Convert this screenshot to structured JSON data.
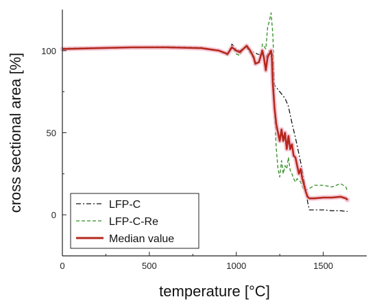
{
  "chart_data": {
    "type": "line",
    "title": "",
    "xlabel": "temperature [°C]",
    "ylabel": "cross sectional area [%]",
    "xlim": [
      0,
      1750
    ],
    "ylim": [
      -25,
      125
    ],
    "xticks": [
      0,
      500,
      1000,
      1500
    ],
    "yticks": [
      0,
      50,
      100
    ],
    "grid": false,
    "legend_position": "bottom-left",
    "series": [
      {
        "name": "LFP-C",
        "color": "#111111",
        "dash": "dashdot",
        "x": [
          0,
          300,
          600,
          800,
          900,
          950,
          975,
          1000,
          1020,
          1050,
          1080,
          1100,
          1120,
          1150,
          1170,
          1190,
          1200,
          1210,
          1220,
          1250,
          1280,
          1300,
          1320,
          1340,
          1360,
          1380,
          1400,
          1410,
          1420,
          1450,
          1500,
          1550,
          1600,
          1640
        ],
        "y": [
          101,
          101.5,
          102,
          101.5,
          100,
          98,
          104,
          101,
          100,
          102,
          100,
          99,
          98,
          97,
          96,
          100,
          99,
          98,
          79,
          75,
          71,
          66,
          56,
          47,
          37,
          27,
          15,
          8,
          3,
          3,
          3,
          2.5,
          2.5,
          2
        ]
      },
      {
        "name": "LFP-C-Re",
        "color": "#2e8b22",
        "dash": "dashed",
        "x": [
          0,
          300,
          600,
          800,
          900,
          950,
          975,
          1000,
          1020,
          1040,
          1050,
          1070,
          1100,
          1120,
          1140,
          1150,
          1170,
          1180,
          1190,
          1200,
          1210,
          1215,
          1220,
          1230,
          1240,
          1250,
          1260,
          1270,
          1280,
          1290,
          1300,
          1310,
          1320,
          1330,
          1340,
          1350,
          1360,
          1370,
          1380,
          1390,
          1400,
          1420,
          1450,
          1500,
          1550,
          1600,
          1630,
          1640
        ],
        "y": [
          101.5,
          102,
          102.5,
          102,
          100,
          97,
          103,
          98,
          97,
          101,
          103,
          100,
          95,
          92,
          96,
          104,
          101,
          114,
          118,
          123,
          110,
          96,
          62,
          40,
          28,
          23,
          33,
          25,
          30,
          28,
          35,
          27,
          25,
          22,
          20,
          22,
          21,
          20,
          17,
          15,
          15,
          16,
          18,
          18,
          17,
          19,
          17,
          14
        ]
      },
      {
        "name": "Median value",
        "color": "#b5281e",
        "dash": "solid",
        "x": [
          0,
          200,
          400,
          600,
          800,
          900,
          950,
          975,
          1000,
          1020,
          1040,
          1060,
          1080,
          1100,
          1110,
          1130,
          1150,
          1160,
          1170,
          1180,
          1190,
          1200,
          1205,
          1210,
          1220,
          1230,
          1240,
          1250,
          1260,
          1270,
          1280,
          1290,
          1300,
          1310,
          1320,
          1330,
          1340,
          1350,
          1360,
          1370,
          1380,
          1390,
          1400,
          1410,
          1420,
          1450,
          1500,
          1550,
          1600,
          1630,
          1640
        ],
        "y": [
          101,
          101.5,
          102,
          102,
          101.5,
          100,
          98,
          102,
          100,
          99,
          101,
          103,
          100,
          96,
          92,
          93,
          100,
          95,
          88,
          96,
          98,
          100,
          95,
          80,
          65,
          55,
          50,
          45,
          52,
          45,
          50,
          40,
          48,
          40,
          43,
          36,
          35,
          30,
          25,
          28,
          22,
          18,
          14,
          11,
          10,
          10,
          10.5,
          10.5,
          11,
          10,
          9
        ]
      }
    ]
  }
}
